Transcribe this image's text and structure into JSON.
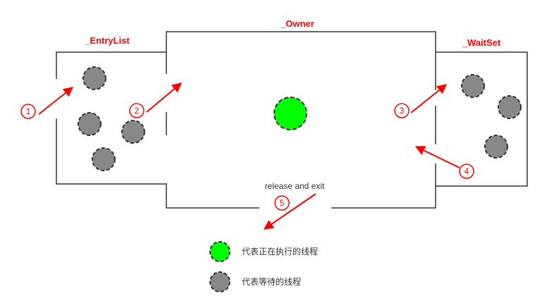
{
  "regions": {
    "entry_list": "_EntryList",
    "owner": "_Owner",
    "wait_set": "_WaitSet"
  },
  "steps": [
    "1",
    "2",
    "3",
    "4",
    "5"
  ],
  "release_label": "release and exit",
  "legend": {
    "running": "代表正在执行的线程",
    "waiting": "代表等待的线程"
  },
  "colors": {
    "running_thread": "#00ff00",
    "waiting_thread": "#888888",
    "accent": "#ff0000",
    "region_label": "#ff0000"
  }
}
